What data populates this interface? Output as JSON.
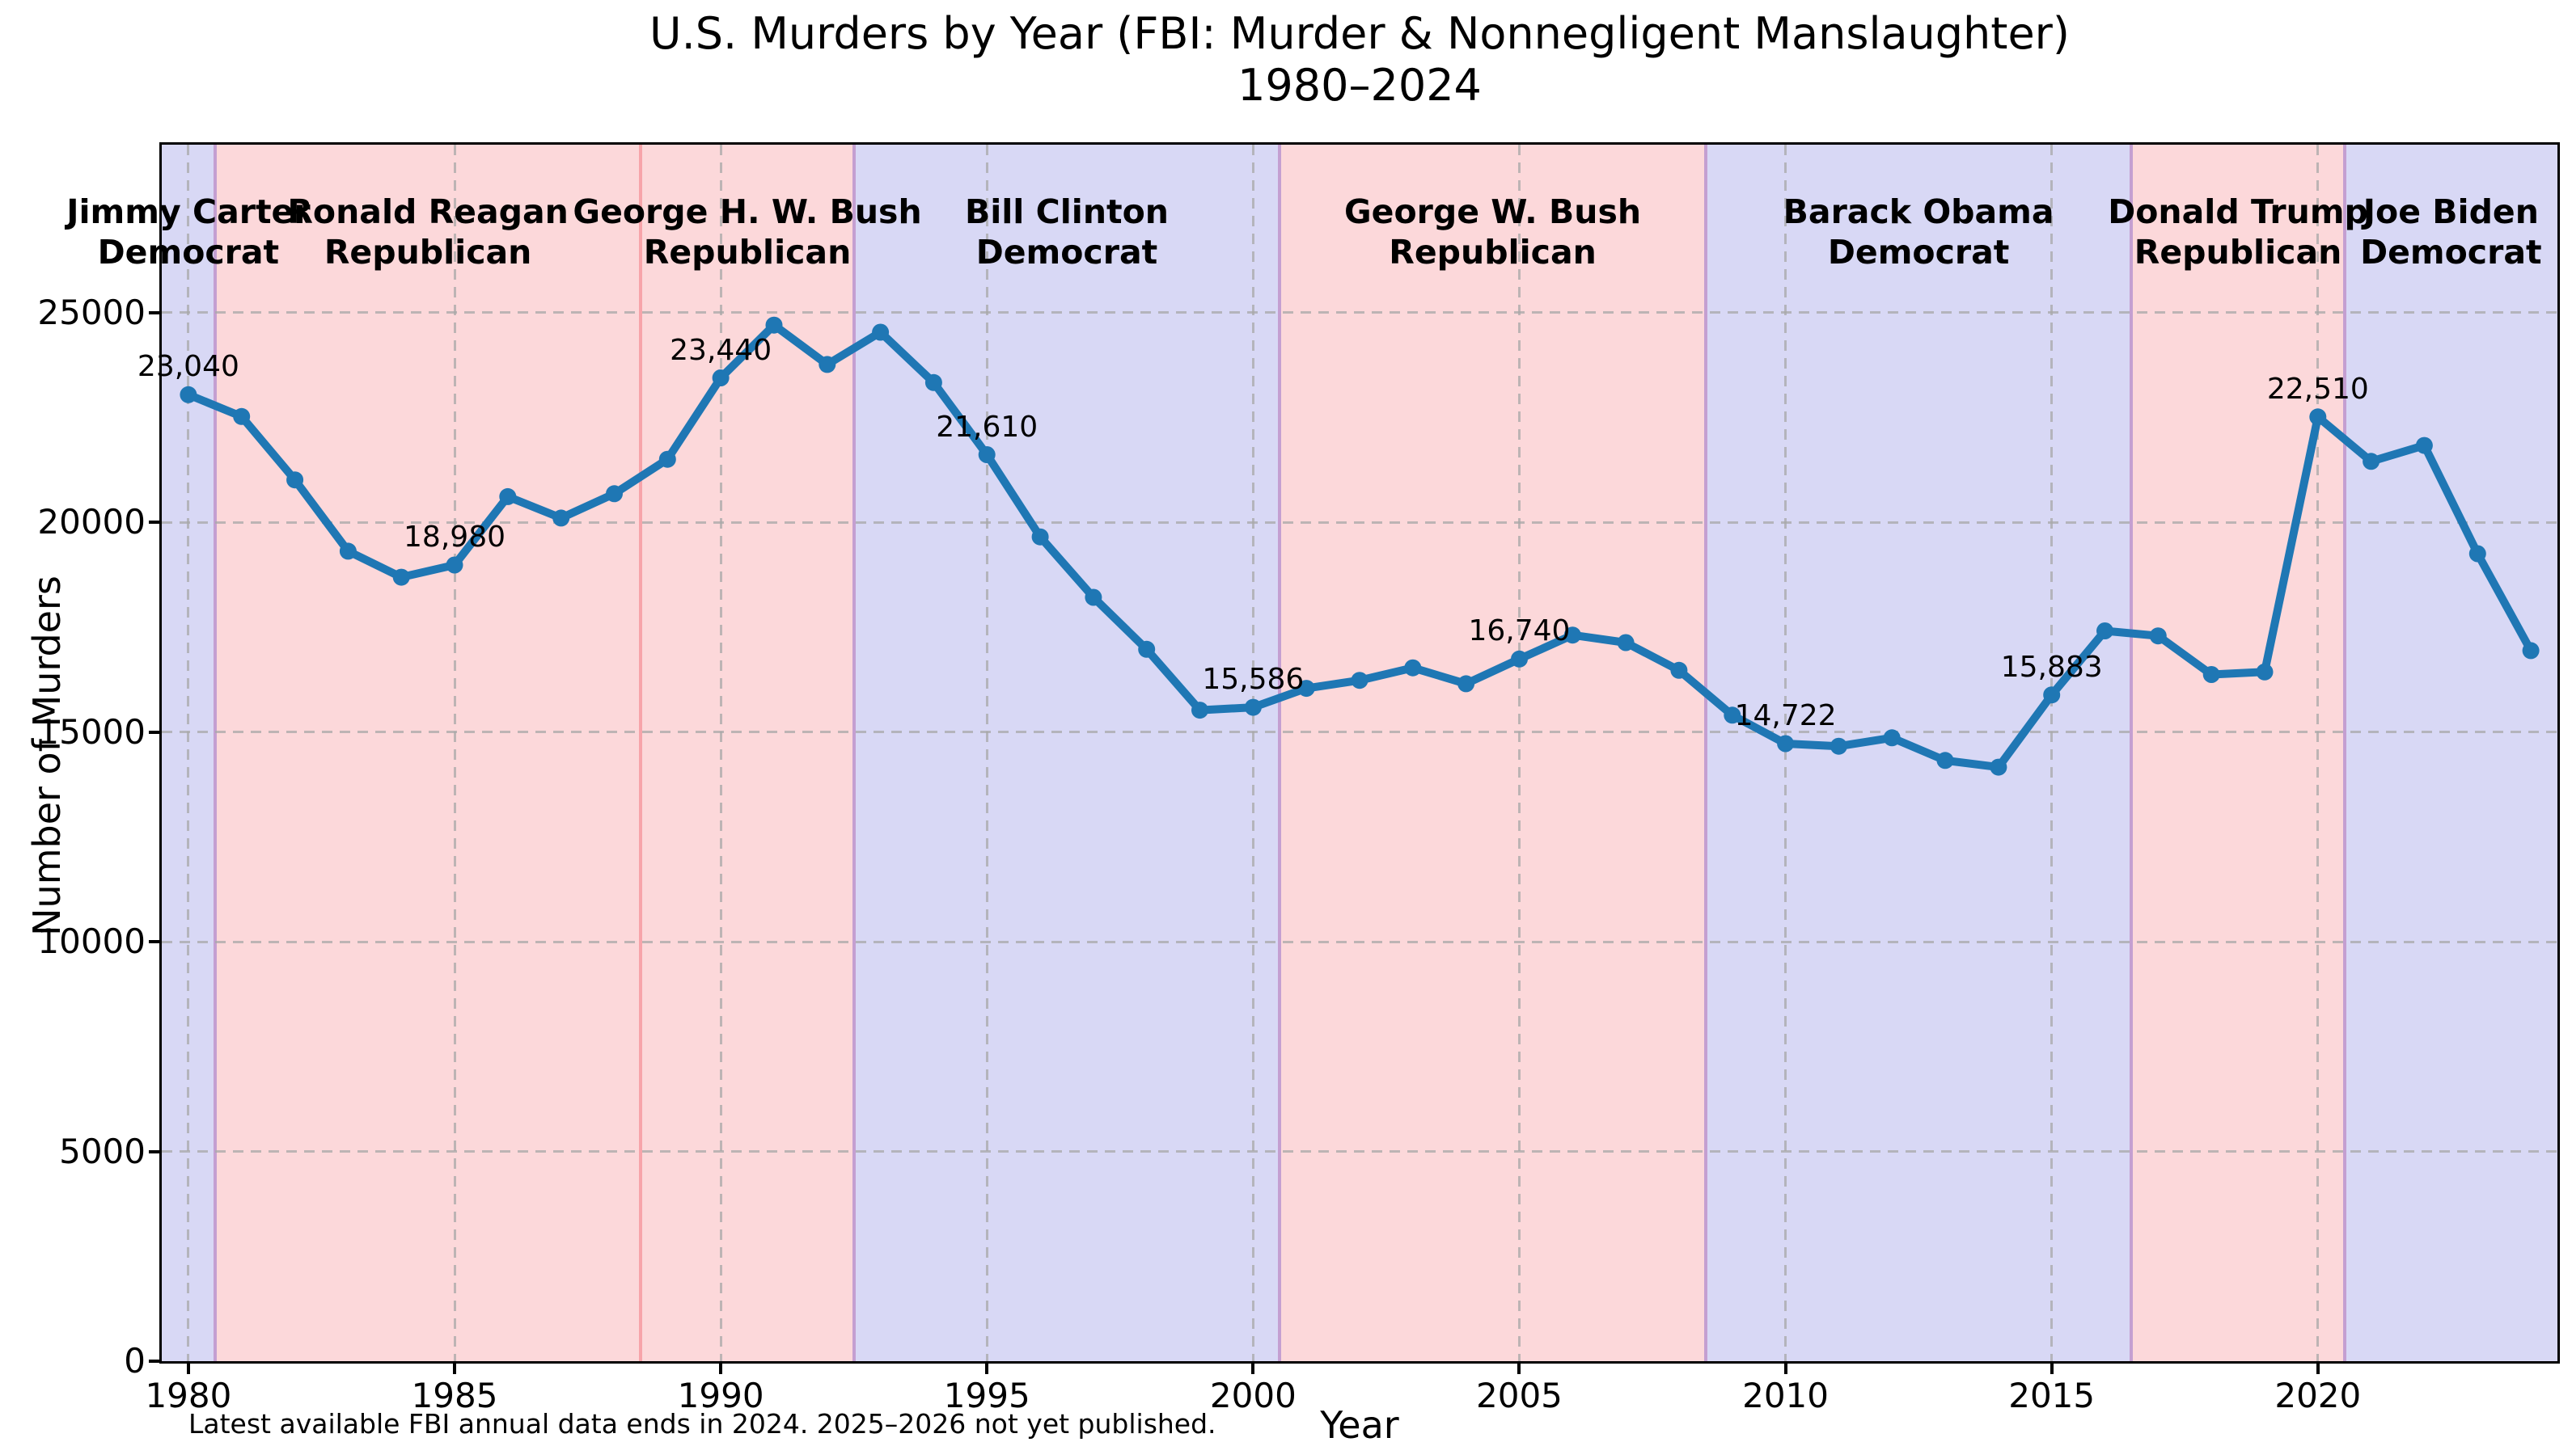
{
  "title": {
    "line1": "U.S. Murders by Year (FBI: Murder & Nonnegligent Manslaughter)",
    "line2": "1980–2024"
  },
  "footnote": "Latest available FBI annual data ends in 2024. 2025–2026 not yet published.",
  "chart_data": {
    "type": "line",
    "title": "U.S. Murders by Year (FBI: Murder & Nonnegligent Manslaughter) 1980–2024",
    "xlabel": "Year",
    "ylabel": "Number of Murders",
    "xlim": [
      1979.5,
      2024.5
    ],
    "ylim": [
      0,
      29000
    ],
    "x_ticks": [
      1980,
      1985,
      1990,
      1995,
      2000,
      2005,
      2010,
      2015,
      2020
    ],
    "y_ticks": [
      0,
      5000,
      10000,
      15000,
      20000,
      25000
    ],
    "grid": true,
    "line_color": "#1f77b4",
    "years": [
      1980,
      1981,
      1982,
      1983,
      1984,
      1985,
      1986,
      1987,
      1988,
      1989,
      1990,
      1991,
      1992,
      1993,
      1994,
      1995,
      1996,
      1997,
      1998,
      1999,
      2000,
      2001,
      2002,
      2003,
      2004,
      2005,
      2006,
      2007,
      2008,
      2009,
      2010,
      2011,
      2012,
      2013,
      2014,
      2015,
      2016,
      2017,
      2018,
      2019,
      2020,
      2021,
      2022,
      2023,
      2024
    ],
    "values": [
      23040,
      22520,
      21010,
      19310,
      18690,
      18980,
      20610,
      20100,
      20680,
      21500,
      23440,
      24700,
      23760,
      24530,
      23330,
      21610,
      19650,
      18210,
      16970,
      15520,
      15586,
      16040,
      16230,
      16530,
      16150,
      16740,
      17310,
      17130,
      16470,
      15400,
      14722,
      14660,
      14860,
      14320,
      14160,
      15883,
      17410,
      17290,
      16370,
      16430,
      22510,
      21450,
      21830,
      19250,
      16940
    ],
    "annotations": [
      {
        "year": 1980,
        "label": "23,040"
      },
      {
        "year": 1985,
        "label": "18,980"
      },
      {
        "year": 1990,
        "label": "23,440"
      },
      {
        "year": 1995,
        "label": "21,610"
      },
      {
        "year": 2000,
        "label": "15,586"
      },
      {
        "year": 2005,
        "label": "16,740"
      },
      {
        "year": 2010,
        "label": "14,722"
      },
      {
        "year": 2015,
        "label": "15,883"
      },
      {
        "year": 2020,
        "label": "22,510"
      }
    ],
    "president_bands": [
      {
        "name": "Jimmy Carter",
        "party": "Democrat",
        "start": 1979.5,
        "end": 1980.5
      },
      {
        "name": "Ronald Reagan",
        "party": "Republican",
        "start": 1980.5,
        "end": 1988.5
      },
      {
        "name": "George H. W. Bush",
        "party": "Republican",
        "start": 1988.5,
        "end": 1992.5
      },
      {
        "name": "Bill Clinton",
        "party": "Democrat",
        "start": 1992.5,
        "end": 2000.5
      },
      {
        "name": "George W. Bush",
        "party": "Republican",
        "start": 2000.5,
        "end": 2008.5
      },
      {
        "name": "Barack Obama",
        "party": "Democrat",
        "start": 2008.5,
        "end": 2016.5
      },
      {
        "name": "Donald Trump",
        "party": "Republican",
        "start": 2016.5,
        "end": 2020.5
      },
      {
        "name": "Joe Biden",
        "party": "Democrat",
        "start": 2020.5,
        "end": 2024.5
      }
    ],
    "party_colors": {
      "Democrat": "#d8d8f5",
      "Republican": "#fcd8da"
    },
    "boundary_colors": {
      "same_party": "#f7a4aa",
      "diff_party": "#c49fd1"
    }
  }
}
